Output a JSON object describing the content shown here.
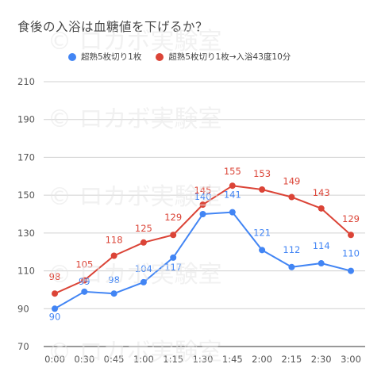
{
  "chart_data": {
    "type": "line",
    "title": "食後の入浴は血糖値を下げるか？",
    "categories": [
      "0:00",
      "0:30",
      "0:45",
      "1:00",
      "1:15",
      "1:30",
      "1:45",
      "2:00",
      "2:15",
      "2:30",
      "3:00"
    ],
    "series": [
      {
        "name": "超熟5枚切り1枚",
        "color": "#4285f4",
        "values": [
          90,
          99,
          98,
          104,
          117,
          140,
          141,
          121,
          112,
          114,
          110
        ]
      },
      {
        "name": "超熟5枚切り1枚→入浴43度10分",
        "color": "#db4437",
        "values": [
          98,
          105,
          118,
          125,
          129,
          145,
          155,
          153,
          149,
          143,
          129
        ]
      }
    ],
    "yticks": [
      70,
      90,
      110,
      130,
      150,
      170,
      190,
      210
    ],
    "ylim": [
      70,
      210
    ],
    "grid": true,
    "legend_position": "top",
    "xlabel": "",
    "ylabel": ""
  },
  "watermark": {
    "text": "© ロカボ実験室"
  }
}
